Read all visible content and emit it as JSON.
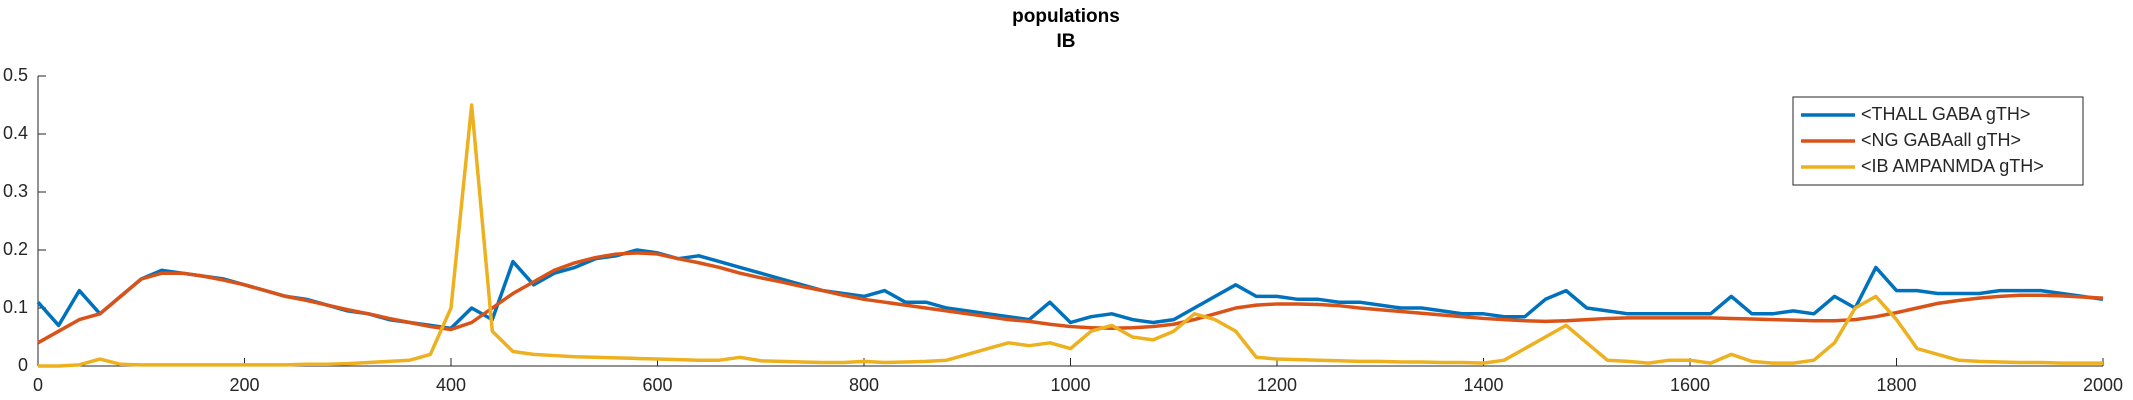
{
  "chart_data": {
    "type": "line",
    "title": "populations",
    "subtitle": "IB",
    "x": [
      0,
      20,
      40,
      60,
      80,
      100,
      120,
      140,
      160,
      180,
      200,
      220,
      240,
      260,
      280,
      300,
      320,
      340,
      360,
      380,
      400,
      420,
      440,
      460,
      480,
      500,
      520,
      540,
      560,
      580,
      600,
      620,
      640,
      660,
      680,
      700,
      720,
      740,
      760,
      780,
      800,
      820,
      840,
      860,
      880,
      900,
      920,
      940,
      960,
      980,
      1000,
      1020,
      1040,
      1060,
      1080,
      1100,
      1120,
      1140,
      1160,
      1180,
      1200,
      1220,
      1240,
      1260,
      1280,
      1300,
      1320,
      1340,
      1360,
      1380,
      1400,
      1420,
      1440,
      1460,
      1480,
      1500,
      1520,
      1540,
      1560,
      1580,
      1600,
      1620,
      1640,
      1660,
      1680,
      1700,
      1720,
      1740,
      1760,
      1780,
      1800,
      1820,
      1840,
      1860,
      1880,
      1900,
      1920,
      1940,
      1960,
      1980,
      2000
    ],
    "series": [
      {
        "name": "<THALL GABA gTH>",
        "color": "#0072BD",
        "values": [
          0.11,
          0.07,
          0.13,
          0.09,
          0.12,
          0.15,
          0.165,
          0.16,
          0.155,
          0.15,
          0.14,
          0.13,
          0.12,
          0.115,
          0.105,
          0.095,
          0.09,
          0.08,
          0.075,
          0.07,
          0.065,
          0.1,
          0.08,
          0.18,
          0.14,
          0.16,
          0.17,
          0.185,
          0.19,
          0.2,
          0.195,
          0.185,
          0.19,
          0.18,
          0.17,
          0.16,
          0.15,
          0.14,
          0.13,
          0.125,
          0.12,
          0.13,
          0.11,
          0.11,
          0.1,
          0.095,
          0.09,
          0.085,
          0.08,
          0.11,
          0.075,
          0.085,
          0.09,
          0.08,
          0.075,
          0.08,
          0.1,
          0.12,
          0.14,
          0.12,
          0.12,
          0.115,
          0.115,
          0.11,
          0.11,
          0.105,
          0.1,
          0.1,
          0.095,
          0.09,
          0.09,
          0.085,
          0.085,
          0.115,
          0.13,
          0.1,
          0.095,
          0.09,
          0.09,
          0.09,
          0.09,
          0.09,
          0.12,
          0.09,
          0.09,
          0.095,
          0.09,
          0.12,
          0.1,
          0.17,
          0.13,
          0.13,
          0.125,
          0.125,
          0.125,
          0.13,
          0.13,
          0.13,
          0.125,
          0.12,
          0.115
        ]
      },
      {
        "name": "<NG GABAall gTH>",
        "color": "#D95319",
        "values": [
          0.04,
          0.06,
          0.08,
          0.09,
          0.12,
          0.15,
          0.16,
          0.16,
          0.155,
          0.148,
          0.14,
          0.13,
          0.12,
          0.113,
          0.105,
          0.097,
          0.09,
          0.082,
          0.075,
          0.068,
          0.063,
          0.075,
          0.1,
          0.125,
          0.145,
          0.165,
          0.178,
          0.187,
          0.193,
          0.195,
          0.193,
          0.185,
          0.178,
          0.17,
          0.16,
          0.152,
          0.145,
          0.137,
          0.13,
          0.122,
          0.115,
          0.11,
          0.105,
          0.1,
          0.095,
          0.09,
          0.085,
          0.08,
          0.077,
          0.072,
          0.068,
          0.066,
          0.065,
          0.066,
          0.068,
          0.072,
          0.08,
          0.09,
          0.1,
          0.105,
          0.107,
          0.107,
          0.106,
          0.104,
          0.1,
          0.097,
          0.094,
          0.091,
          0.088,
          0.085,
          0.082,
          0.08,
          0.078,
          0.077,
          0.078,
          0.08,
          0.082,
          0.083,
          0.083,
          0.083,
          0.083,
          0.083,
          0.082,
          0.081,
          0.08,
          0.079,
          0.078,
          0.078,
          0.08,
          0.085,
          0.092,
          0.1,
          0.108,
          0.113,
          0.117,
          0.12,
          0.122,
          0.122,
          0.121,
          0.119,
          0.117
        ]
      },
      {
        "name": "<IB AMPANMDA gTH>",
        "color": "#EDB120",
        "values": [
          0,
          0,
          0.002,
          0.012,
          0.003,
          0.002,
          0.002,
          0.002,
          0.002,
          0.002,
          0.002,
          0.002,
          0.002,
          0.003,
          0.003,
          0.004,
          0.006,
          0.008,
          0.01,
          0.02,
          0.1,
          0.45,
          0.06,
          0.025,
          0.02,
          0.018,
          0.016,
          0.015,
          0.014,
          0.013,
          0.012,
          0.011,
          0.01,
          0.01,
          0.015,
          0.009,
          0.008,
          0.007,
          0.006,
          0.006,
          0.008,
          0.006,
          0.007,
          0.008,
          0.01,
          0.02,
          0.03,
          0.04,
          0.035,
          0.04,
          0.03,
          0.06,
          0.07,
          0.05,
          0.045,
          0.06,
          0.09,
          0.08,
          0.06,
          0.015,
          0.012,
          0.011,
          0.01,
          0.009,
          0.008,
          0.008,
          0.007,
          0.007,
          0.006,
          0.006,
          0.005,
          0.01,
          0.03,
          0.05,
          0.07,
          0.04,
          0.01,
          0.008,
          0.005,
          0.01,
          0.01,
          0.005,
          0.02,
          0.008,
          0.005,
          0.005,
          0.01,
          0.04,
          0.1,
          0.12,
          0.08,
          0.03,
          0.02,
          0.01,
          0.008,
          0.007,
          0.006,
          0.006,
          0.005,
          0.005,
          0.005
        ]
      }
    ],
    "xlim": [
      0,
      2000
    ],
    "xticks": [
      0,
      200,
      400,
      600,
      800,
      1000,
      1200,
      1400,
      1600,
      1800,
      2000
    ],
    "ylim": [
      0,
      0.5
    ],
    "yticks": [
      0,
      0.1,
      0.2,
      0.3,
      0.4,
      0.5
    ],
    "grid": false,
    "legend": "northeast"
  }
}
